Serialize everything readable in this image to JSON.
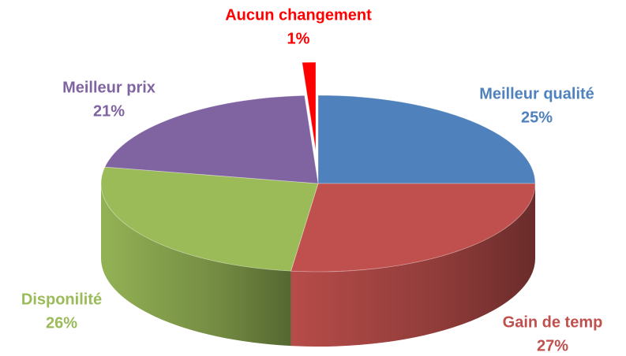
{
  "chart_data": {
    "type": "pie3d",
    "categories": [
      "Meilleur qualité",
      "Gain de temp",
      "Disponilité",
      "Meilleur prix",
      "Aucun changement"
    ],
    "values": [
      25,
      27,
      26,
      21,
      1
    ],
    "value_labels": [
      "25%",
      "27%",
      "26%",
      "21%",
      "1%"
    ],
    "colors": [
      "#4f81bd",
      "#c0504d",
      "#9bbb59",
      "#8064a2",
      "#ff0000"
    ],
    "exploded": [
      false,
      false,
      false,
      false,
      true
    ]
  }
}
